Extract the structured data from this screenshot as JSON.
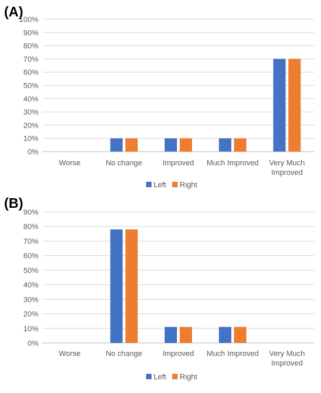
{
  "chart_data": [
    {
      "type": "bar",
      "panel_label": "(A)",
      "categories": [
        [
          "Worse"
        ],
        [
          "No change"
        ],
        [
          "Improved"
        ],
        [
          "Much Improved"
        ],
        [
          "Very Much",
          "Improved"
        ]
      ],
      "series": [
        {
          "name": "Left",
          "color": "#4472C4",
          "values": [
            0,
            10,
            10,
            10,
            70
          ]
        },
        {
          "name": "Right",
          "color": "#ED7D31",
          "values": [
            0,
            10,
            10,
            10,
            70
          ]
        }
      ],
      "ylim": [
        0,
        100
      ],
      "yticks": [
        0,
        10,
        20,
        30,
        40,
        50,
        60,
        70,
        80,
        90,
        100
      ],
      "tick_suffix": "%",
      "grid": true,
      "legend": "bottom"
    },
    {
      "type": "bar",
      "panel_label": "(B)",
      "categories": [
        [
          "Worse"
        ],
        [
          "No change"
        ],
        [
          "Improved"
        ],
        [
          "Much Improved"
        ],
        [
          "Very Much",
          "Improved"
        ]
      ],
      "series": [
        {
          "name": "Left",
          "color": "#4472C4",
          "values": [
            0,
            78,
            11,
            11,
            0
          ]
        },
        {
          "name": "Right",
          "color": "#ED7D31",
          "values": [
            0,
            78,
            11,
            11,
            0
          ]
        }
      ],
      "ylim": [
        0,
        90
      ],
      "yticks": [
        0,
        10,
        20,
        30,
        40,
        50,
        60,
        70,
        80,
        90
      ],
      "tick_suffix": "%",
      "grid": true,
      "legend": "bottom"
    }
  ]
}
